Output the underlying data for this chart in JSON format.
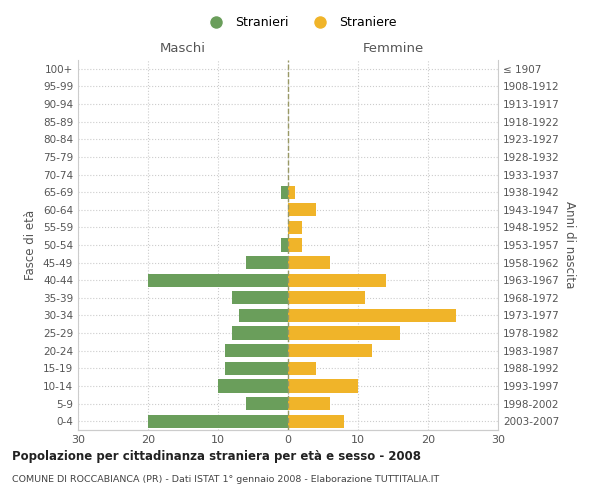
{
  "age_groups": [
    "0-4",
    "5-9",
    "10-14",
    "15-19",
    "20-24",
    "25-29",
    "30-34",
    "35-39",
    "40-44",
    "45-49",
    "50-54",
    "55-59",
    "60-64",
    "65-69",
    "70-74",
    "75-79",
    "80-84",
    "85-89",
    "90-94",
    "95-99",
    "100+"
  ],
  "birth_years": [
    "2003-2007",
    "1998-2002",
    "1993-1997",
    "1988-1992",
    "1983-1987",
    "1978-1982",
    "1973-1977",
    "1968-1972",
    "1963-1967",
    "1958-1962",
    "1953-1957",
    "1948-1952",
    "1943-1947",
    "1938-1942",
    "1933-1937",
    "1928-1932",
    "1923-1927",
    "1918-1922",
    "1913-1917",
    "1908-1912",
    "≤ 1907"
  ],
  "males": [
    20,
    6,
    10,
    9,
    9,
    8,
    7,
    8,
    20,
    6,
    1,
    0,
    0,
    1,
    0,
    0,
    0,
    0,
    0,
    0,
    0
  ],
  "females": [
    8,
    6,
    10,
    4,
    12,
    16,
    24,
    11,
    14,
    6,
    2,
    2,
    4,
    1,
    0,
    0,
    0,
    0,
    0,
    0,
    0
  ],
  "male_color": "#6a9e5b",
  "female_color": "#f0b429",
  "title": "Popolazione per cittadinanza straniera per età e sesso - 2008",
  "subtitle": "COMUNE DI ROCCABIANCA (PR) - Dati ISTAT 1° gennaio 2008 - Elaborazione TUTTITALIA.IT",
  "legend_male": "Stranieri",
  "legend_female": "Straniere",
  "xlabel_left": "Maschi",
  "xlabel_right": "Femmine",
  "ylabel_left": "Fasce di età",
  "ylabel_right": "Anni di nascita",
  "xlim": 30,
  "bg_color": "#ffffff",
  "grid_color": "#cccccc",
  "axis_label_color": "#555555",
  "tick_label_color": "#555555",
  "dashed_line_color": "#999966"
}
